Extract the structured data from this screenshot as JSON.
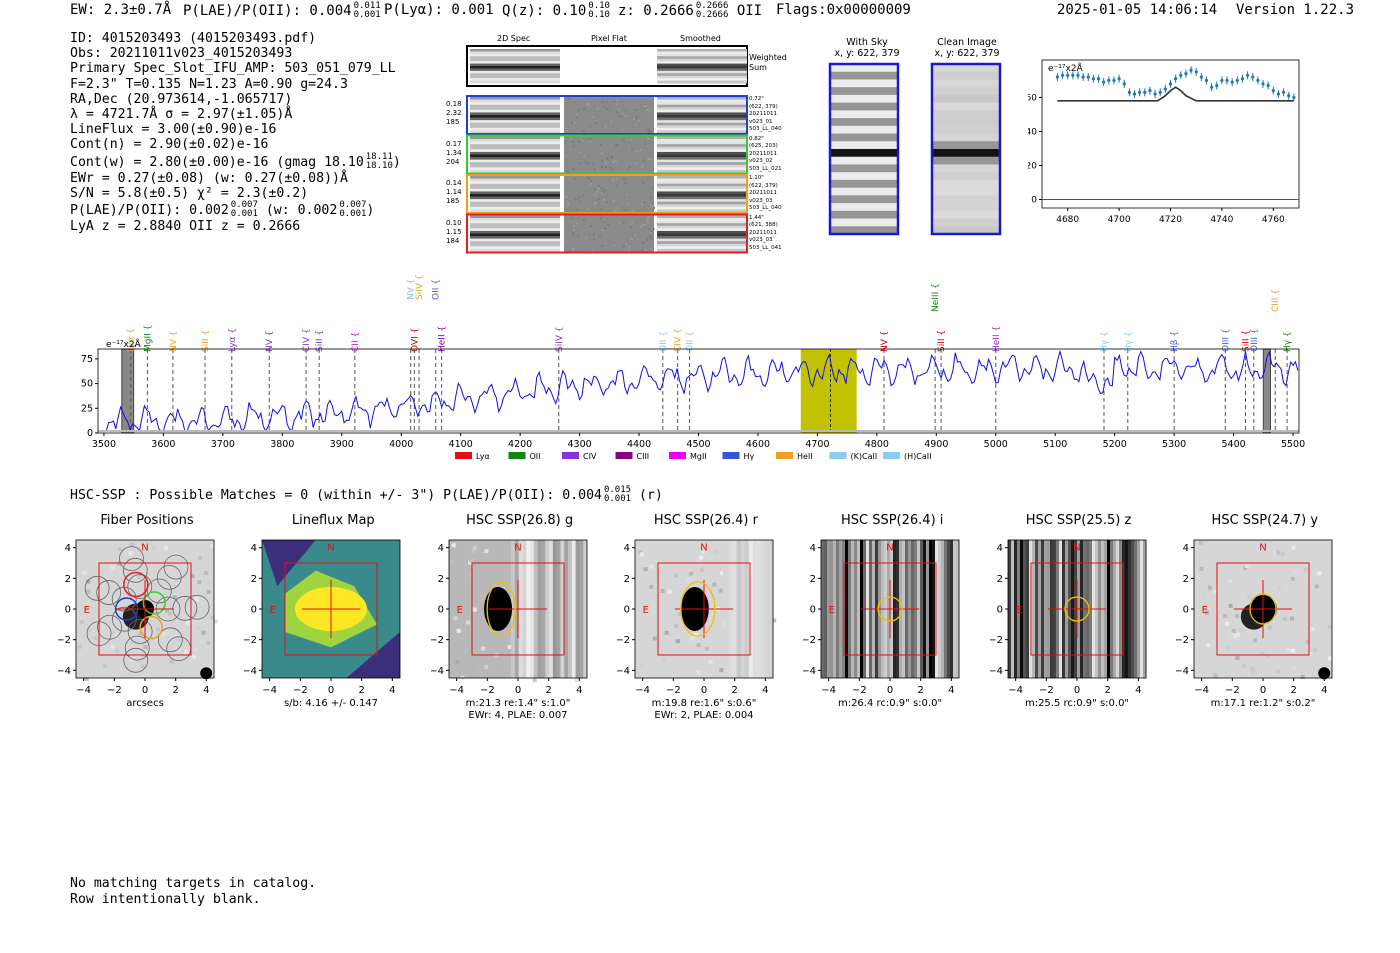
{
  "header": {
    "ew": "EW: 2.3±0.7Å",
    "plae": "P(LAE)/P(OII): 0.004",
    "plae_hi": "0.011",
    "plae_lo": "0.001",
    "plya": "P(Lyα): 0.001",
    "qz": "Q(z): 0.10",
    "qz_hi": "0.10",
    "qz_lo": "0.10",
    "z": "z: 0.2666",
    "z_hi": "0.2666",
    "z_lo": "0.2666",
    "z_line": "OII",
    "flags": "Flags:0x00000009",
    "datetime": "2025-01-05 14:06:14",
    "version": "Version 1.22.3"
  },
  "info": {
    "id": "ID: 4015203493 (4015203493.pdf)",
    "obs": "Obs: 20211011v023_4015203493",
    "primary": "Primary Spec_Slot_IFU_AMP: 503_051_079_LL",
    "fit": "F=2.3\"  T=0.135  N=1.23  A=0.90  g=24.3",
    "radec": "RA,Dec (20.973614,-1.065717)",
    "lambda": "λ = 4721.7Å   σ = 2.97(±1.05)Å",
    "lineflux": "LineFlux = 3.00(±0.90)e-16",
    "contn": "Cont(n) = 2.90(±0.02)e-16",
    "contw": "Cont(w) = 2.80(±0.00)e-16 (gmag 18.10",
    "contw_hi": "18.11",
    "contw_lo": "18.10",
    "contw_end": ")",
    "ewr": "EWr = 0.27(±0.08) (w: 0.27(±0.08))Å",
    "sn": "S/N = 5.8(±0.5)  χ² = 2.3(±0.2)",
    "plae2": "P(LAE)/P(OII): 0.002",
    "plae2_hi": "0.007",
    "plae2_lo": "0.001",
    "plae2_w": "(w: 0.002",
    "plae2_w_hi": "0.007",
    "plae2_w_lo": "0.001",
    "plae2_end": ")",
    "lyaz": "LyA z = 2.8840   OII z = 0.2666"
  },
  "spec2d": {
    "col_headers": [
      "2D Spec",
      "Pixel Flat",
      "Smoothed"
    ],
    "weighted_sum": "Weighted Sum",
    "rows": [
      {
        "left": [
          "0.18",
          "2.32",
          "185"
        ],
        "right": [
          "0.72\"",
          "(622, 379)",
          "20211011",
          "v023_01",
          "503_LL_040"
        ],
        "color": "#1f3bd6"
      },
      {
        "left": [
          "0.17",
          "1.34",
          "204"
        ],
        "right": [
          "0.82\"",
          "(625, 203)",
          "20211011",
          "v023_02",
          "503_LL_021"
        ],
        "color": "#2fd02f"
      },
      {
        "left": [
          "0.14",
          "1.14",
          "185"
        ],
        "right": [
          "1.10\"",
          "(622, 379)",
          "20211011",
          "v023_03",
          "503_LL_040"
        ],
        "color": "#f0a020"
      },
      {
        "left": [
          "0.10",
          "1.15",
          "184"
        ],
        "right": [
          "1.44\"",
          "(621, 388)",
          "20211011",
          "v023_03",
          "503_LL_041"
        ],
        "color": "#e02020"
      }
    ]
  },
  "cutouts": {
    "with_sky": "With Sky",
    "with_sky_xy": "x, y: 622, 379",
    "clean": "Clean Image",
    "clean_xy": "x, y: 622, 379"
  },
  "line_fit_chart": {
    "unit": "e⁻¹⁷x2Å"
  },
  "lines": [
    {
      "name": "Lyα",
      "w": 3545,
      "color": "#f0a020",
      "row": 0
    },
    {
      "name": "MgII",
      "w": 3573,
      "color": "#118811",
      "row": 0
    },
    {
      "name": "NV",
      "w": 3616,
      "color": "#f0a020",
      "row": 0
    },
    {
      "name": "SiII",
      "w": 3670,
      "color": "#f0a020",
      "row": 0
    },
    {
      "name": "Lyα",
      "w": 3715,
      "color": "#8833cc",
      "row": 0
    },
    {
      "name": "NV",
      "w": 3778,
      "color": "#8833cc",
      "row": 0
    },
    {
      "name": "CIV",
      "w": 3840,
      "color": "#8833cc",
      "row": 0
    },
    {
      "name": "SiII",
      "w": 3862,
      "color": "#8833cc",
      "row": 0
    },
    {
      "name": "CII",
      "w": 3922,
      "color": "#d020d0",
      "row": 0
    },
    {
      "name": "NV",
      "w": 4016,
      "color": "#88bbee",
      "row": 2
    },
    {
      "name": "SiIV",
      "w": 4030,
      "color": "#f0a020",
      "row": 2
    },
    {
      "name": "OII",
      "w": 4058,
      "color": "#4466dd",
      "row": 2
    },
    {
      "name": "OVI",
      "w": 4022,
      "color": "#cc0000",
      "row": 0
    },
    {
      "name": "HeII",
      "w": 4068,
      "color": "#8800aa",
      "row": 0
    },
    {
      "name": "SiIV",
      "w": 4265,
      "color": "#8833cc",
      "row": 0
    },
    {
      "name": "OII",
      "w": 4440,
      "color": "#88ccee",
      "row": 0
    },
    {
      "name": "CIV",
      "w": 4465,
      "color": "#f0a020",
      "row": 0
    },
    {
      "name": "OII",
      "w": 4485,
      "color": "#88ccee",
      "row": 0
    },
    {
      "name": "NV",
      "w": 4812,
      "color": "#cc0000",
      "row": 0
    },
    {
      "name": "NeIII",
      "w": 4898,
      "color": "#118811",
      "row": 1
    },
    {
      "name": "SiII",
      "w": 4908,
      "color": "#cc0000",
      "row": 0
    },
    {
      "name": "HeII",
      "w": 5000,
      "color": "#8833cc",
      "row": 0
    },
    {
      "name": "Hγ",
      "w": 5182,
      "color": "#88ccee",
      "row": 0
    },
    {
      "name": "Hγ",
      "w": 5222,
      "color": "#88ccee",
      "row": 0
    },
    {
      "name": "Hβ",
      "w": 5300,
      "color": "#4466dd",
      "row": 0
    },
    {
      "name": "OIII",
      "w": 5386,
      "color": "#4466dd",
      "row": 0
    },
    {
      "name": "SiII",
      "w": 5420,
      "color": "#cc0000",
      "row": 0
    },
    {
      "name": "OIII",
      "w": 5434,
      "color": "#4466dd",
      "row": 0
    },
    {
      "name": "CIII",
      "w": 5470,
      "color": "#f0a020",
      "row": 1
    },
    {
      "name": "Hγ",
      "w": 5490,
      "color": "#118811",
      "row": 0
    }
  ],
  "legend": [
    {
      "label": "Lyα",
      "color": "#e01010"
    },
    {
      "label": "OII",
      "color": "#118811"
    },
    {
      "label": "CIV",
      "color": "#8833dd"
    },
    {
      "label": "CIII",
      "color": "#880088"
    },
    {
      "label": "MgII",
      "color": "#ee00ee"
    },
    {
      "label": "Hγ",
      "color": "#3355dd"
    },
    {
      "label": "HeII",
      "color": "#f0a020"
    },
    {
      "label": "(K)CaII",
      "color": "#88ccee"
    },
    {
      "label": "(H)CaII",
      "color": "#88ccee"
    }
  ],
  "hsc": {
    "summary": "HSC-SSP : Possible Matches = 0 (within +/- 3\")  P(LAE)/P(OII): 0.004",
    "summary_hi": "0.015",
    "summary_lo": "0.001",
    "summary_end": "(r)",
    "panels": [
      {
        "title": "Fiber Positions",
        "caption": [
          "arcsecs"
        ],
        "bg": "fiber"
      },
      {
        "title": "Lineflux Map",
        "caption": [
          "s/b: 4.16 +/- 0.147"
        ],
        "bg": "lineflux"
      },
      {
        "title": "HSC SSP(26.8) g",
        "caption": [
          "m:21.3  re:1.4\"  s:1.0\"",
          "EWr: 4, PLAE: 0.007"
        ],
        "bg": "g"
      },
      {
        "title": "HSC SSP(26.4) r",
        "caption": [
          "m:19.8  re:1.6\"  s:0.6\"",
          "EWr: 2, PLAE: 0.004"
        ],
        "bg": "r"
      },
      {
        "title": "HSC SSP(26.4) i",
        "caption": [
          "m:26.4 rc:0.9\"  s:0.0\""
        ],
        "bg": "i"
      },
      {
        "title": "HSC SSP(25.5) z",
        "caption": [
          "m:25.5 rc:0.9\"  s:0.0\""
        ],
        "bg": "z"
      },
      {
        "title": "HSC SSP(24.7) y",
        "caption": [
          "m:17.1  re:1.2\"  s:0.2\""
        ],
        "bg": "y"
      }
    ],
    "compass_n": "N",
    "compass_e": "E",
    "ticks": [
      "4",
      "2",
      "0",
      "−2",
      "−4"
    ],
    "xticks": [
      "−4",
      "−2",
      "0",
      "2",
      "4"
    ]
  },
  "footer": {
    "line1": "No matching targets in catalog.",
    "line2": "Row intentionally blank."
  },
  "chart_data": [
    {
      "type": "scatter",
      "title": "",
      "ylabel": "e⁻¹⁷x2Å",
      "xlim": [
        4670,
        4770
      ],
      "ylim": [
        -5,
        82
      ],
      "xticks": [
        4680,
        4700,
        4720,
        4740,
        4760
      ],
      "yticks": [
        0,
        20,
        40,
        60
      ],
      "x": [
        4676,
        4678,
        4680,
        4682,
        4684,
        4686,
        4688,
        4690,
        4692,
        4694,
        4696,
        4698,
        4700,
        4702,
        4704,
        4706,
        4708,
        4710,
        4712,
        4714,
        4716,
        4718,
        4720,
        4722,
        4724,
        4726,
        4728,
        4730,
        4732,
        4734,
        4736,
        4738,
        4740,
        4742,
        4744,
        4746,
        4748,
        4750,
        4752,
        4754,
        4756,
        4758,
        4760,
        4762,
        4764,
        4766,
        4768
      ],
      "y": [
        72,
        73,
        73,
        73,
        73,
        72,
        72,
        71,
        71,
        69,
        70,
        70,
        71,
        68,
        63,
        62,
        63,
        63,
        64,
        62,
        63,
        65,
        68,
        71,
        73,
        74,
        76,
        75,
        72,
        70,
        66,
        67,
        70,
        70,
        69,
        70,
        71,
        73,
        72,
        70,
        68,
        67,
        64,
        62,
        63,
        61,
        60
      ],
      "fit_x": [
        4676,
        4700,
        4710,
        4715,
        4718,
        4720,
        4722,
        4724,
        4726,
        4730,
        4740,
        4768
      ],
      "fit_y": [
        58,
        58,
        58,
        58,
        61,
        64,
        66,
        64,
        61,
        58,
        58,
        58
      ]
    },
    {
      "type": "line",
      "title": "",
      "ylabel": "e⁻¹⁷x2Å",
      "xlim": [
        3490,
        5510
      ],
      "ylim": [
        0,
        85
      ],
      "xticks": [
        3500,
        3600,
        3700,
        3800,
        3900,
        4000,
        4100,
        4200,
        4300,
        4400,
        4500,
        4600,
        4700,
        4800,
        4900,
        5000,
        5100,
        5200,
        5300,
        5400,
        5500
      ],
      "yticks": [
        0,
        25,
        50,
        75
      ],
      "highlight_band": [
        4672,
        4766
      ],
      "highlight_center": 4722
    }
  ]
}
